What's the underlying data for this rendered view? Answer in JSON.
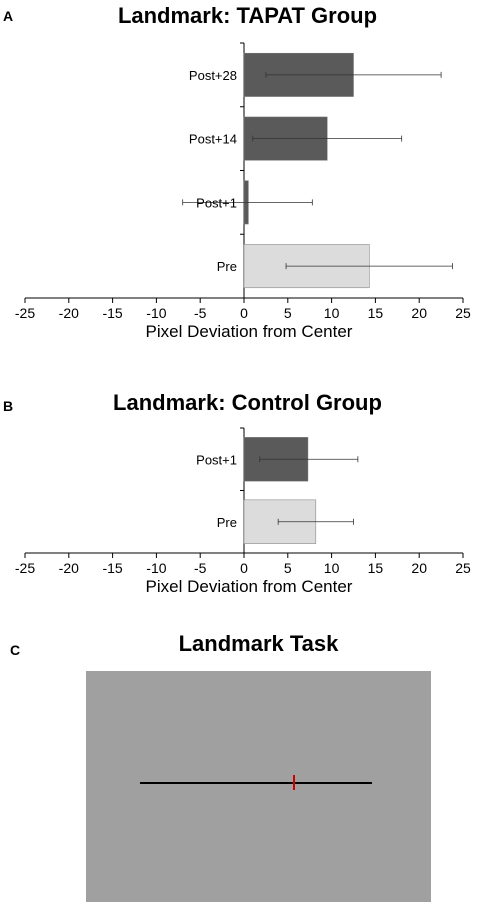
{
  "panels": [
    {
      "letter": "A",
      "title": "Landmark: TAPAT Group"
    },
    {
      "letter": "B",
      "title": "Landmark: Control Group"
    },
    {
      "letter": "C",
      "title": "Landmark Task"
    }
  ],
  "chart_data": [
    {
      "type": "bar",
      "orientation": "horizontal",
      "title": "Landmark: TAPAT Group",
      "xlabel": "Pixel Deviation from Center",
      "ylabel": "",
      "xlim": [
        -25,
        25
      ],
      "xticks": [
        -25,
        -20,
        -15,
        -10,
        -5,
        0,
        5,
        10,
        15,
        20,
        25
      ],
      "grid": false,
      "categories": [
        "Post+28",
        "Post+14",
        "Post+1",
        "Pre"
      ],
      "values": [
        12.5,
        9.5,
        0.5,
        14.3
      ],
      "error_low": [
        2.5,
        1.0,
        -7.0,
        4.8
      ],
      "error_high": [
        22.5,
        18.0,
        7.8,
        23.8
      ],
      "colors": [
        "#5a5a5a",
        "#5a5a5a",
        "#5a5a5a",
        "#dcdcdc"
      ]
    },
    {
      "type": "bar",
      "orientation": "horizontal",
      "title": "Landmark: Control Group",
      "xlabel": "Pixel Deviation from Center",
      "ylabel": "",
      "xlim": [
        -25,
        25
      ],
      "xticks": [
        -25,
        -20,
        -15,
        -10,
        -5,
        0,
        5,
        10,
        15,
        20,
        25
      ],
      "grid": false,
      "categories": [
        "Post+1",
        "Pre"
      ],
      "values": [
        7.3,
        8.2
      ],
      "error_low": [
        1.8,
        3.9
      ],
      "error_high": [
        13.0,
        12.5
      ],
      "colors": [
        "#5a5a5a",
        "#dcdcdc"
      ]
    }
  ],
  "task": {
    "background_color": "#a0a0a0",
    "line_color": "#000000",
    "marker_color": "#cc0000"
  }
}
